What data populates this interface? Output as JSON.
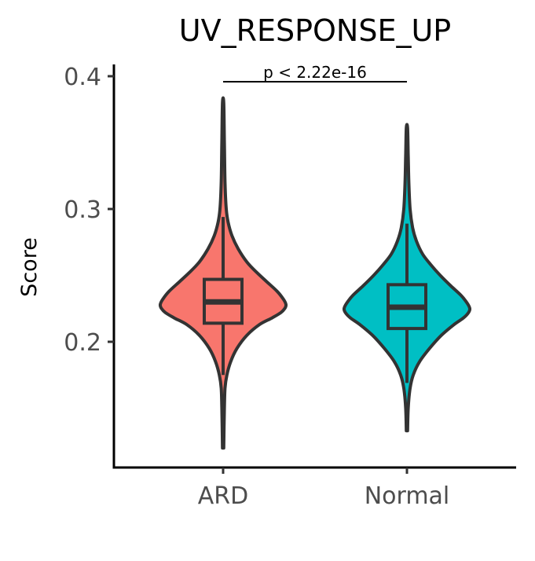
{
  "chart_data": {
    "type": "violin",
    "title": "UV_RESPONSE_UP",
    "xlabel": "",
    "ylabel": "Score",
    "ylim": [
      0.11,
      0.41
    ],
    "yticks": [
      0.2,
      0.3,
      0.4
    ],
    "ytick_labels": [
      "0.2",
      "0.3",
      "0.4"
    ],
    "categories": [
      "ARD",
      "Normal"
    ],
    "series": [
      {
        "category": "ARD",
        "color": "#F8766D",
        "min": 0.12,
        "max": 0.38,
        "box": {
          "q1": 0.214,
          "median": 0.23,
          "q3": 0.247,
          "whisker_low": 0.175,
          "whisker_high": 0.294
        },
        "density": [
          [
            0.12,
            0.01
          ],
          [
            0.15,
            0.02
          ],
          [
            0.165,
            0.03
          ],
          [
            0.175,
            0.06
          ],
          [
            0.185,
            0.12
          ],
          [
            0.195,
            0.22
          ],
          [
            0.205,
            0.38
          ],
          [
            0.213,
            0.58
          ],
          [
            0.218,
            0.78
          ],
          [
            0.222,
            0.92
          ],
          [
            0.225,
            0.98
          ],
          [
            0.228,
            1.0
          ],
          [
            0.232,
            0.96
          ],
          [
            0.238,
            0.86
          ],
          [
            0.245,
            0.7
          ],
          [
            0.252,
            0.54
          ],
          [
            0.26,
            0.38
          ],
          [
            0.27,
            0.24
          ],
          [
            0.28,
            0.14
          ],
          [
            0.29,
            0.08
          ],
          [
            0.3,
            0.05
          ],
          [
            0.32,
            0.03
          ],
          [
            0.35,
            0.02
          ],
          [
            0.38,
            0.01
          ]
        ]
      },
      {
        "category": "Normal",
        "color": "#00BFC4",
        "min": 0.133,
        "max": 0.361,
        "box": {
          "q1": 0.21,
          "median": 0.226,
          "q3": 0.243,
          "whisker_low": 0.169,
          "whisker_high": 0.289
        },
        "density": [
          [
            0.133,
            0.01
          ],
          [
            0.15,
            0.02
          ],
          [
            0.165,
            0.05
          ],
          [
            0.175,
            0.1
          ],
          [
            0.185,
            0.2
          ],
          [
            0.195,
            0.36
          ],
          [
            0.205,
            0.55
          ],
          [
            0.213,
            0.75
          ],
          [
            0.218,
            0.9
          ],
          [
            0.222,
            0.98
          ],
          [
            0.225,
            1.0
          ],
          [
            0.229,
            0.96
          ],
          [
            0.235,
            0.86
          ],
          [
            0.242,
            0.7
          ],
          [
            0.25,
            0.53
          ],
          [
            0.258,
            0.38
          ],
          [
            0.266,
            0.25
          ],
          [
            0.276,
            0.15
          ],
          [
            0.286,
            0.09
          ],
          [
            0.3,
            0.05
          ],
          [
            0.32,
            0.03
          ],
          [
            0.34,
            0.02
          ],
          [
            0.361,
            0.01
          ]
        ]
      }
    ],
    "annotations": [
      {
        "text": "p < 2.22e-16",
        "between": [
          "ARD",
          "Normal"
        ],
        "y": 0.4
      }
    ],
    "grid": false,
    "legend": "none"
  }
}
